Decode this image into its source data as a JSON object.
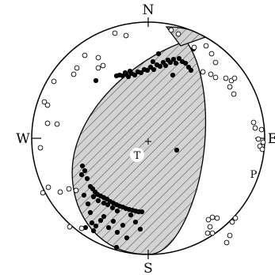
{
  "compass": {
    "north": "N",
    "south": "S",
    "west": "W",
    "east": "E"
  },
  "axes": {
    "t_label": "T",
    "p_label": "P"
  },
  "colors": {
    "background": "#ffffff",
    "line": "#000000",
    "compression_fill": "#d3d3d3",
    "dilatation_fill": "#ffffff"
  },
  "symbols": {
    "compression": "filled-circle",
    "dilatation": "open-circle",
    "center": "plus-sign"
  },
  "polarities": {
    "compression": [
      [
        147,
        96
      ],
      [
        151,
        95
      ],
      [
        155,
        96
      ],
      [
        159,
        94
      ],
      [
        162,
        97
      ],
      [
        166,
        93
      ],
      [
        170,
        95
      ],
      [
        174,
        91
      ],
      [
        178,
        92
      ],
      [
        182,
        88
      ],
      [
        186,
        89
      ],
      [
        190,
        85
      ],
      [
        194,
        88
      ],
      [
        198,
        82
      ],
      [
        202,
        84
      ],
      [
        206,
        79
      ],
      [
        209,
        83
      ],
      [
        212,
        76
      ],
      [
        215,
        79
      ],
      [
        219,
        75
      ],
      [
        222,
        80
      ],
      [
        226,
        74
      ],
      [
        230,
        78
      ],
      [
        234,
        80
      ],
      [
        238,
        85
      ],
      [
        241,
        89
      ],
      [
        244,
        62
      ],
      [
        218,
        95
      ],
      [
        193,
        78
      ],
      [
        200,
        68
      ],
      [
        121,
        102
      ],
      [
        158,
        92
      ],
      [
        164,
        90
      ],
      [
        104,
        210
      ],
      [
        107,
        216
      ],
      [
        103,
        221
      ],
      [
        110,
        226
      ],
      [
        114,
        236
      ],
      [
        117,
        239
      ],
      [
        120,
        243
      ],
      [
        123,
        246
      ],
      [
        127,
        248
      ],
      [
        131,
        250
      ],
      [
        135,
        252
      ],
      [
        139,
        255
      ],
      [
        143,
        257
      ],
      [
        147,
        259
      ],
      [
        151,
        261
      ],
      [
        155,
        262
      ],
      [
        159,
        264
      ],
      [
        163,
        265
      ],
      [
        167,
        266
      ],
      [
        171,
        267
      ],
      [
        175,
        268
      ],
      [
        179,
        268
      ],
      [
        118,
        249
      ],
      [
        124,
        254
      ],
      [
        131,
        257
      ],
      [
        136,
        259
      ],
      [
        142,
        263
      ],
      [
        148,
        267
      ],
      [
        111,
        258
      ],
      [
        114,
        269
      ],
      [
        116,
        282
      ],
      [
        118,
        292
      ],
      [
        121,
        286
      ],
      [
        127,
        279
      ],
      [
        131,
        274
      ],
      [
        137,
        288
      ],
      [
        143,
        280
      ],
      [
        148,
        294
      ],
      [
        155,
        285
      ],
      [
        160,
        301
      ],
      [
        165,
        272
      ],
      [
        171,
        281
      ],
      [
        177,
        290
      ],
      [
        106,
        247
      ],
      [
        223,
        190
      ],
      [
        147,
        313
      ],
      [
        108,
        288
      ]
    ],
    "dilatation": [
      [
        145,
        42
      ],
      [
        159,
        45
      ],
      [
        107,
        70
      ],
      [
        97,
        86
      ],
      [
        93,
        94
      ],
      [
        124,
        73
      ],
      [
        124,
        86
      ],
      [
        130,
        83
      ],
      [
        68,
        103
      ],
      [
        56,
        129
      ],
      [
        60,
        133
      ],
      [
        60,
        156
      ],
      [
        72,
        157
      ],
      [
        51,
        187
      ],
      [
        61,
        237
      ],
      [
        54,
        244
      ],
      [
        76,
        243
      ],
      [
        87,
        239
      ],
      [
        96,
        241
      ],
      [
        88,
        287
      ],
      [
        103,
        289
      ],
      [
        216,
        38
      ],
      [
        225,
        43
      ],
      [
        245,
        60
      ],
      [
        260,
        58
      ],
      [
        267,
        68
      ],
      [
        272,
        79
      ],
      [
        256,
        91
      ],
      [
        266,
        94
      ],
      [
        272,
        98
      ],
      [
        285,
        99
      ],
      [
        292,
        102
      ],
      [
        290,
        110
      ],
      [
        296,
        99
      ],
      [
        295,
        119
      ],
      [
        320,
        155
      ],
      [
        322,
        162
      ],
      [
        330,
        164
      ],
      [
        326,
        176
      ],
      [
        332,
        180
      ],
      [
        328,
        185
      ],
      [
        331,
        189
      ],
      [
        263,
        278
      ],
      [
        268,
        275
      ],
      [
        274,
        276
      ],
      [
        265,
        287
      ],
      [
        262,
        295
      ],
      [
        268,
        295
      ],
      [
        297,
        276
      ],
      [
        293,
        281
      ],
      [
        290,
        298
      ],
      [
        286,
        307
      ]
    ]
  }
}
